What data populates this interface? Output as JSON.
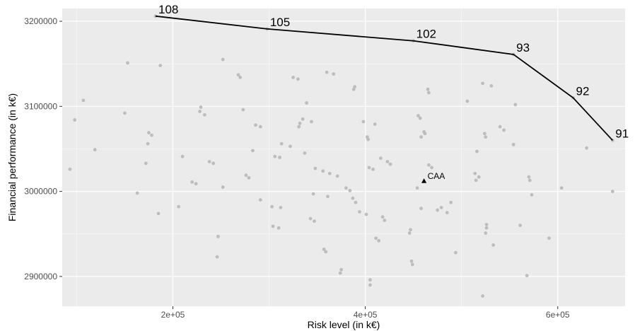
{
  "chart_data": {
    "type": "scatter",
    "title": "",
    "xlabel": "Risk level (in k€)",
    "ylabel": "Financial performance (in k€)",
    "xlim": [
      85000,
      670000
    ],
    "ylim": [
      2865000,
      3215000
    ],
    "x_ticks": [
      {
        "value": 200000,
        "label": "2e+05"
      },
      {
        "value": 400000,
        "label": "4e+05"
      },
      {
        "value": 600000,
        "label": "6e+05"
      }
    ],
    "y_ticks": [
      {
        "value": 2900000,
        "label": "2900000"
      },
      {
        "value": 3000000,
        "label": "3000000"
      },
      {
        "value": 3100000,
        "label": "3100000"
      },
      {
        "value": 3200000,
        "label": "3200000"
      }
    ],
    "grid": true,
    "colors": {
      "panel": "#ebebeb",
      "grid_major": "#ffffff",
      "points": "#bdbdbd",
      "frontier": "#000000",
      "reference": "#000000"
    },
    "frontier": [
      {
        "x": 182000,
        "y": 3206000,
        "label": "108"
      },
      {
        "x": 298000,
        "y": 3191000,
        "label": "105"
      },
      {
        "x": 450000,
        "y": 3177000,
        "label": "102"
      },
      {
        "x": 554000,
        "y": 3161000,
        "label": "93"
      },
      {
        "x": 616000,
        "y": 3110000,
        "label": "92"
      },
      {
        "x": 657000,
        "y": 3060000,
        "label": "91"
      }
    ],
    "reference_point": {
      "x": 461000,
      "y": 3012000,
      "label": "CAA"
    },
    "points": [
      [
        93000,
        3026000
      ],
      [
        98000,
        3084000
      ],
      [
        107000,
        3107000
      ],
      [
        119000,
        3049000
      ],
      [
        150000,
        3092000
      ],
      [
        153000,
        3151000
      ],
      [
        163000,
        2998000
      ],
      [
        172000,
        3033000
      ],
      [
        174000,
        3056000
      ],
      [
        175000,
        3069000
      ],
      [
        178000,
        3066000
      ],
      [
        185000,
        2974000
      ],
      [
        187000,
        3148000
      ],
      [
        206000,
        2982000
      ],
      [
        210000,
        3041000
      ],
      [
        220000,
        3011000
      ],
      [
        224000,
        3009000
      ],
      [
        228000,
        3094000
      ],
      [
        229000,
        3099000
      ],
      [
        233000,
        3090000
      ],
      [
        238000,
        3035000
      ],
      [
        242000,
        3033000
      ],
      [
        247000,
        2947000
      ],
      [
        246000,
        2923000
      ],
      [
        252000,
        3005000
      ],
      [
        252000,
        3155000
      ],
      [
        268000,
        3137000
      ],
      [
        270000,
        3134000
      ],
      [
        273000,
        3096000
      ],
      [
        276000,
        3019000
      ],
      [
        279000,
        3016000
      ],
      [
        283000,
        3048000
      ],
      [
        286000,
        3078000
      ],
      [
        291000,
        3076000
      ],
      [
        291000,
        2990000
      ],
      [
        303000,
        2982000
      ],
      [
        304000,
        2959000
      ],
      [
        306000,
        3041000
      ],
      [
        310000,
        2957000
      ],
      [
        311000,
        3040000
      ],
      [
        313000,
        3056000
      ],
      [
        312000,
        2981000
      ],
      [
        322000,
        3053000
      ],
      [
        325000,
        3134000
      ],
      [
        330000,
        3132000
      ],
      [
        331000,
        3076000
      ],
      [
        332000,
        3080000
      ],
      [
        335000,
        3085000
      ],
      [
        337000,
        3045000
      ],
      [
        339000,
        3104000
      ],
      [
        343000,
        2968000
      ],
      [
        344000,
        3082000
      ],
      [
        346000,
        2997000
      ],
      [
        347000,
        2965000
      ],
      [
        348000,
        3027000
      ],
      [
        356000,
        3024000
      ],
      [
        357000,
        2932000
      ],
      [
        359000,
        2929000
      ],
      [
        361000,
        2994000
      ],
      [
        360000,
        3140000
      ],
      [
        363000,
        3021000
      ],
      [
        367000,
        3138000
      ],
      [
        371000,
        3018000
      ],
      [
        374000,
        2904000
      ],
      [
        375000,
        2908000
      ],
      [
        380000,
        3004000
      ],
      [
        384000,
        3001000
      ],
      [
        387000,
        2992000
      ],
      [
        388000,
        3120000
      ],
      [
        389000,
        3123000
      ],
      [
        390000,
        2987000
      ],
      [
        394000,
        2976000
      ],
      [
        398000,
        3082000
      ],
      [
        401000,
        2973000
      ],
      [
        402000,
        3064000
      ],
      [
        403000,
        3061000
      ],
      [
        404000,
        3028000
      ],
      [
        405000,
        2896000
      ],
      [
        405000,
        2890000
      ],
      [
        408000,
        3026000
      ],
      [
        410000,
        3079000
      ],
      [
        411000,
        2945000
      ],
      [
        414000,
        2942000
      ],
      [
        416000,
        3039000
      ],
      [
        418000,
        2970000
      ],
      [
        420000,
        2966000
      ],
      [
        423000,
        3035000
      ],
      [
        426000,
        3032000
      ],
      [
        446000,
        2951000
      ],
      [
        447000,
        2955000
      ],
      [
        448000,
        2918000
      ],
      [
        449000,
        2914000
      ],
      [
        454000,
        3004000
      ],
      [
        455000,
        3089000
      ],
      [
        457000,
        3086000
      ],
      [
        458000,
        3064000
      ],
      [
        458000,
        2980000
      ],
      [
        461000,
        3070000
      ],
      [
        462000,
        3068000
      ],
      [
        465000,
        3120000
      ],
      [
        466000,
        3116000
      ],
      [
        466000,
        3031000
      ],
      [
        469000,
        3028000
      ],
      [
        475000,
        2978000
      ],
      [
        479000,
        2981000
      ],
      [
        485000,
        2975000
      ],
      [
        489000,
        2987000
      ],
      [
        494000,
        2928000
      ],
      [
        506000,
        3106000
      ],
      [
        514000,
        3021000
      ],
      [
        515000,
        3013000
      ],
      [
        516000,
        3047000
      ],
      [
        518000,
        3017000
      ],
      [
        522000,
        3127000
      ],
      [
        522000,
        2877000
      ],
      [
        525000,
        3064000
      ],
      [
        524000,
        3068000
      ],
      [
        526000,
        2961000
      ],
      [
        526000,
        2957000
      ],
      [
        525000,
        2951000
      ],
      [
        531000,
        3124000
      ],
      [
        533000,
        2937000
      ],
      [
        540000,
        3076000
      ],
      [
        544000,
        3072000
      ],
      [
        554000,
        3055000
      ],
      [
        556000,
        3102000
      ],
      [
        561000,
        2960000
      ],
      [
        568000,
        2901000
      ],
      [
        570000,
        3017000
      ],
      [
        571000,
        3013000
      ],
      [
        573000,
        2996000
      ],
      [
        591000,
        2945000
      ],
      [
        604000,
        3004000
      ],
      [
        630000,
        3051000
      ],
      [
        657000,
        3000000
      ]
    ]
  }
}
